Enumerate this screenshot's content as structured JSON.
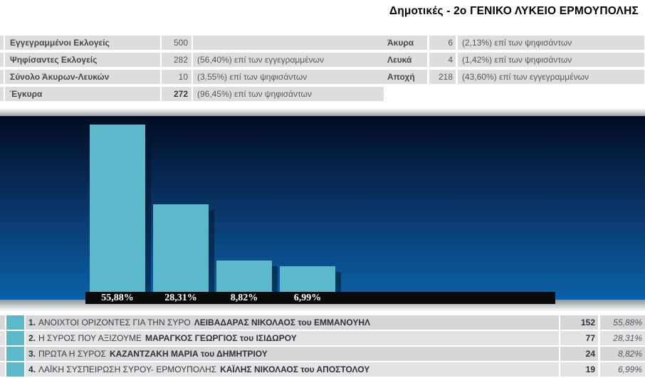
{
  "page": {
    "title": "Δημοτικές - 2ο ΓΕΝΙΚΟ ΛΥΚΕΙΟ ΕΡΜΟΥΠΟΛΗΣ"
  },
  "summary_left": {
    "rows": [
      {
        "label": "Εγγεγραμμένοι Εκλογείς",
        "value": "500",
        "note": ""
      },
      {
        "label": "Ψηφίσαντες Εκλογείς",
        "value": "282",
        "note": "(56,40%) επί των εγγεγραμμένων"
      },
      {
        "label": "Σύνολο Άκυρων-Λευκών",
        "value": "10",
        "note": "(3,55%) επί των ψηφισάντων"
      },
      {
        "label": "Έγκυρα",
        "value": "272",
        "note": "(96,45%) επί των ψηφισάντων"
      }
    ]
  },
  "summary_right": {
    "rows": [
      {
        "label": "Άκυρα",
        "value": "6",
        "note": "(2,13%) επί των ψηφισάντων"
      },
      {
        "label": "Λευκά",
        "value": "4",
        "note": "(1,42%) επί των ψηφισάντων"
      },
      {
        "label": "Αποχή",
        "value": "218",
        "note": "(43,60%) επί των εγγεγραμμένων"
      }
    ]
  },
  "chart_data": {
    "type": "bar",
    "categories": [
      "ΑΝΟΙΧΤΟΙ ΟΡΙΖΟΝΤΕΣ ΓΙΑ ΤΗΝ ΣΥΡΟ",
      "Η ΣΥΡΟΣ ΠΟΥ ΑΞΙΖΟΥΜΕ",
      "ΠΡΩΤΑ Η ΣΥΡΟΣ",
      "ΛΑΪΚΗ ΣΥΣΠΕΙΡΩΣΗ ΣΥΡΟΥ- ΕΡΜΟΥΠΟΛΗΣ"
    ],
    "values": [
      55.88,
      28.31,
      8.82,
      6.99
    ],
    "value_labels": [
      "55,88%",
      "28,31%",
      "8,82%",
      "6,99%"
    ],
    "votes": [
      152,
      77,
      24,
      19
    ],
    "bar_color": "#5cb9cb",
    "background_gradient": [
      "#020c22",
      "#0b62a8"
    ],
    "label_strip_color": "#0a0a0a",
    "ylim": [
      0,
      60
    ],
    "grid": false,
    "legend": "none",
    "title": "",
    "xlabel": "",
    "ylabel": ""
  },
  "results": {
    "rows": [
      {
        "rank": "1.",
        "party": "ΑΝΟΙΧΤΟΙ ΟΡΙΖΟΝΤΕΣ ΓΙΑ ΤΗΝ ΣΥΡΟ",
        "candidate": "ΛΕΙΒΑΔΑΡΑΣ ΝΙΚΟΛΑΟΣ του ΕΜΜΑΝΟΥΗΛ",
        "votes": "152",
        "pct": "55,88%"
      },
      {
        "rank": "2.",
        "party": "Η ΣΥΡΟΣ ΠΟΥ ΑΞΙΖΟΥΜΕ",
        "candidate": "ΜΑΡΑΓΚΟΣ ΓΕΩΡΓΙΟΣ του ΙΣΙΔΩΡΟΥ",
        "votes": "77",
        "pct": "28,31%"
      },
      {
        "rank": "3.",
        "party": "ΠΡΩΤΑ Η ΣΥΡΟΣ",
        "candidate": "ΚΑΖΑΝΤΖΑΚΗ ΜΑΡΙΑ του ΔΗΜΗΤΡΙΟΥ",
        "votes": "24",
        "pct": "8,82%"
      },
      {
        "rank": "4.",
        "party": "ΛΑΪΚΗ ΣΥΣΠΕΙΡΩΣΗ ΣΥΡΟΥ- ΕΡΜΟΥΠΟΛΗΣ",
        "candidate": "ΚΑΪΛΗΣ ΝΙΚΟΛΑΟΣ του ΑΠΟΣΤΟΛΟΥ",
        "votes": "19",
        "pct": "6,99%"
      }
    ]
  }
}
